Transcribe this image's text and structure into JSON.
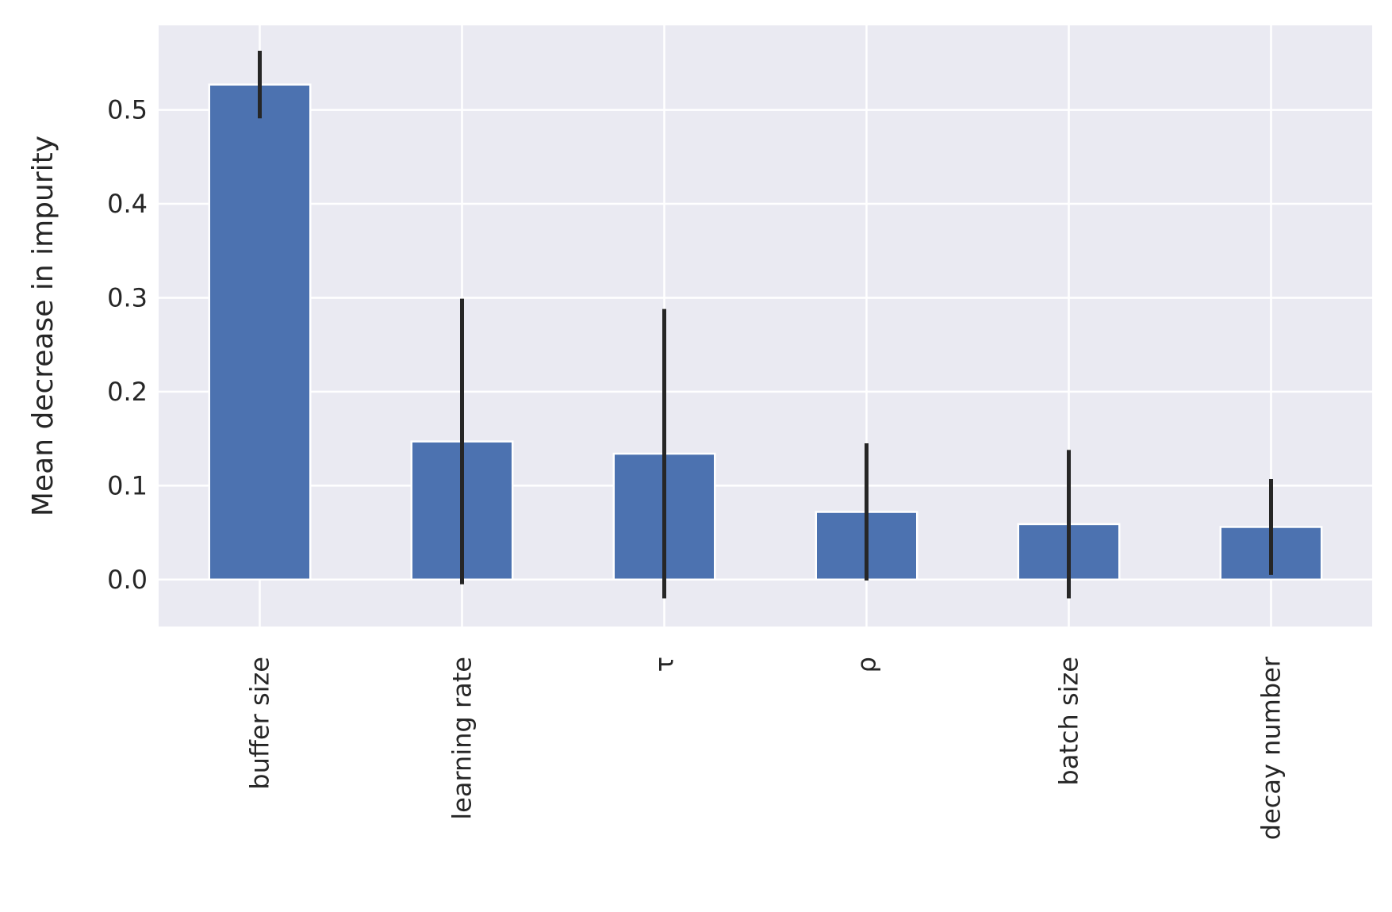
{
  "chart_data": {
    "type": "bar",
    "title": "",
    "xlabel": "",
    "ylabel": "Mean decrease in impurity",
    "categories": [
      "buffer size",
      "learning rate",
      "τ",
      "ρ",
      "batch size",
      "decay number"
    ],
    "values": [
      0.527,
      0.147,
      0.134,
      0.072,
      0.059,
      0.056
    ],
    "errors": [
      0.036,
      0.152,
      0.154,
      0.073,
      0.079,
      0.051
    ],
    "ylim": [
      -0.05,
      0.59
    ],
    "yticks": [
      0.0,
      0.1,
      0.2,
      0.3,
      0.4,
      0.5
    ],
    "ytick_labels": [
      "0.0",
      "0.1",
      "0.2",
      "0.3",
      "0.4",
      "0.5"
    ],
    "grid": true,
    "colors": {
      "bar": "#4c72b0",
      "error_bar": "#262626",
      "plot_background": "#eaeaf2",
      "grid": "#ffffff",
      "text": "#262626"
    }
  }
}
